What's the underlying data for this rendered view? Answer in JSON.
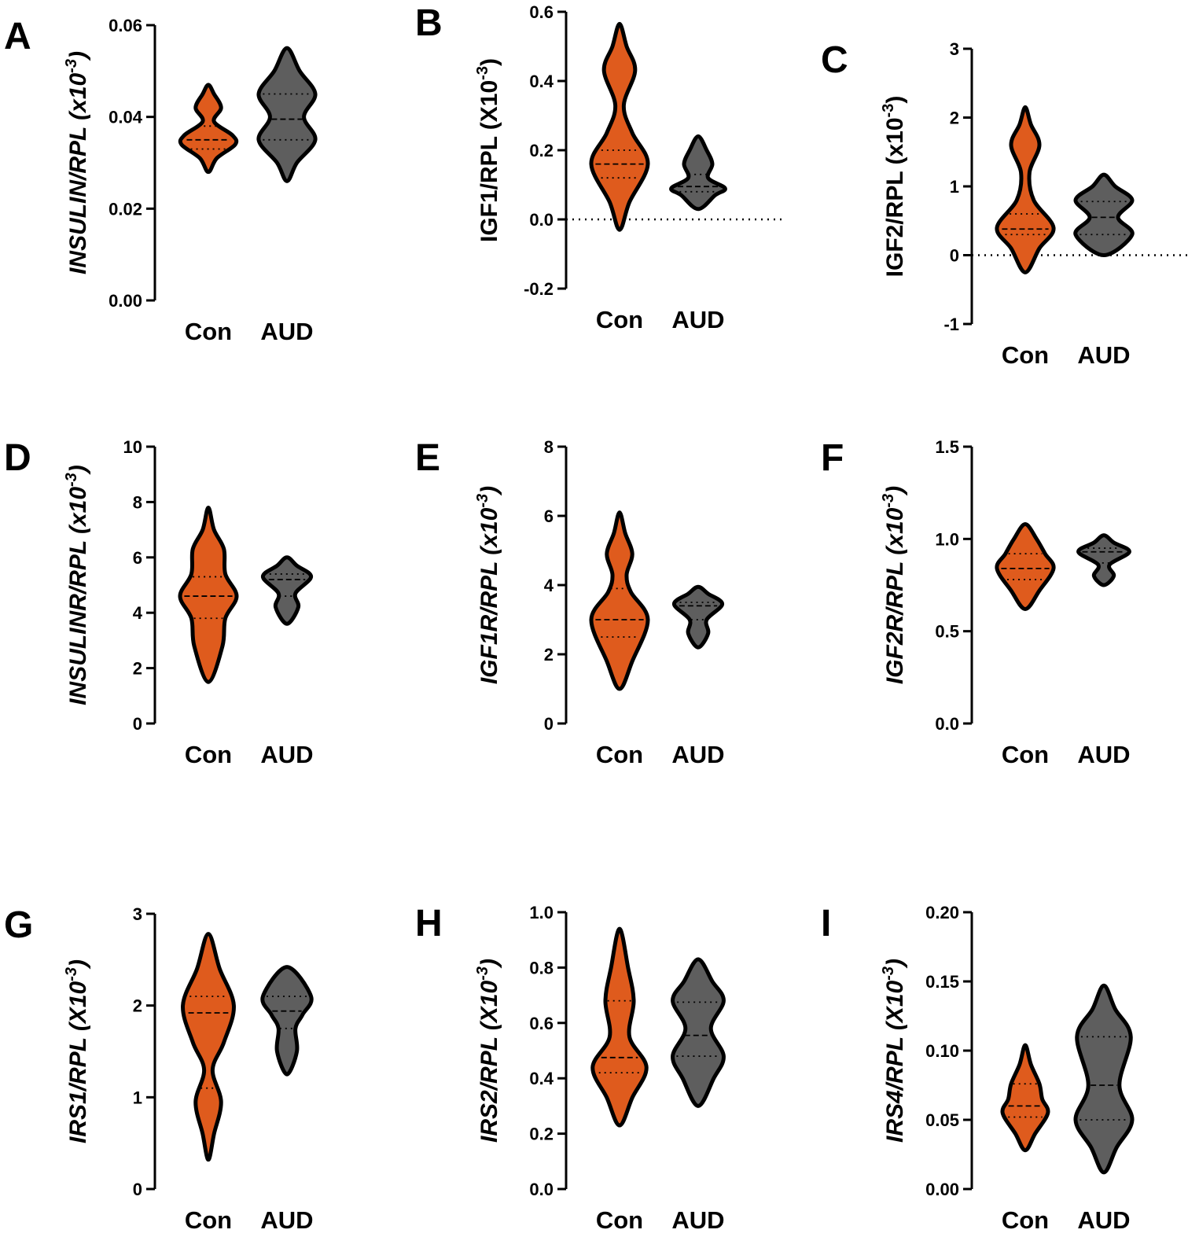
{
  "chart_data": [
    {
      "type": "violin",
      "panel": "A",
      "ylabel": "INSULIN/RPL (x10",
      "ylabel_exp": "-3",
      "ylabel_end": ")",
      "italic": true,
      "ylim": [
        0,
        0.06
      ],
      "yticks": [
        {
          "value": 0,
          "label": "0.00"
        },
        0.02,
        0.04,
        0.06
      ],
      "zero_line": false,
      "categories": [
        "Con",
        "AUD"
      ],
      "violins": [
        {
          "color": "#df5b1d",
          "q1": 0.033,
          "median": 0.035,
          "q3": 0.038,
          "density": {
            "y": [
              0.028,
              0.031,
              0.034,
              0.036,
              0.039,
              0.042,
              0.045,
              0.047
            ],
            "width": [
              0,
              0.3,
              0.95,
              0.85,
              0.2,
              0.45,
              0.2,
              0
            ]
          }
        },
        {
          "color": "#5e5e5e",
          "q1": 0.035,
          "median": 0.0395,
          "q3": 0.045,
          "density": {
            "y": [
              0.026,
              0.03,
              0.035,
              0.04,
              0.045,
              0.05,
              0.055
            ],
            "width": [
              0,
              0.35,
              1,
              0.6,
              1,
              0.45,
              0
            ]
          }
        }
      ]
    },
    {
      "type": "violin",
      "panel": "B",
      "ylabel": "IGF1/RPL (X10",
      "ylabel_exp": "-3",
      "ylabel_end": ")",
      "italic": false,
      "ylim": [
        -0.2,
        0.6
      ],
      "yticks": [
        -0.2,
        {
          "value": 0,
          "label": "0.0"
        },
        0.2,
        0.4,
        0.6
      ],
      "zero_line": true,
      "categories": [
        "Con",
        "AUD"
      ],
      "violins": [
        {
          "color": "#df5b1d",
          "q1": 0.12,
          "median": 0.16,
          "q3": 0.2,
          "density": {
            "y": [
              -0.03,
              0.05,
              0.16,
              0.25,
              0.33,
              0.43,
              0.5,
              0.565
            ],
            "width": [
              0,
              0.35,
              1,
              0.45,
              0.15,
              0.55,
              0.25,
              0
            ]
          }
        },
        {
          "color": "#5e5e5e",
          "q1": 0.08,
          "median": 0.095,
          "q3": 0.13,
          "density": {
            "y": [
              0.03,
              0.07,
              0.09,
              0.12,
              0.16,
              0.2,
              0.24
            ],
            "width": [
              0,
              0.6,
              0.95,
              0.35,
              0.5,
              0.3,
              0
            ]
          }
        }
      ]
    },
    {
      "type": "violin",
      "panel": "C",
      "ylabel": "IGF2/RPL (x10",
      "ylabel_exp": "-3",
      "ylabel_end": ")",
      "italic": false,
      "ylim": [
        -1,
        3
      ],
      "yticks": [
        -1,
        0,
        1,
        2,
        3
      ],
      "zero_line": true,
      "categories": [
        "Con",
        "AUD"
      ],
      "violins": [
        {
          "color": "#df5b1d",
          "q1": 0.3,
          "median": 0.38,
          "q3": 0.6,
          "density": {
            "y": [
              -0.25,
              0.1,
              0.4,
              0.8,
              1.2,
              1.6,
              1.9,
              2.15
            ],
            "width": [
              0,
              0.5,
              1,
              0.3,
              0.15,
              0.5,
              0.2,
              0
            ]
          }
        },
        {
          "color": "#5e5e5e",
          "q1": 0.3,
          "median": 0.55,
          "q3": 0.78,
          "density": {
            "y": [
              0,
              0.3,
              0.55,
              0.8,
              1.0,
              1.17
            ],
            "width": [
              0,
              1,
              0.5,
              1,
              0.4,
              0
            ]
          }
        }
      ]
    },
    {
      "type": "violin",
      "panel": "D",
      "ylabel": "INSULINR/RPL (x10",
      "ylabel_exp": "-3",
      "ylabel_end": ")",
      "italic": true,
      "ylim": [
        0,
        10
      ],
      "yticks": [
        0,
        2,
        4,
        6,
        8,
        10
      ],
      "zero_line": false,
      "categories": [
        "Con",
        "AUD"
      ],
      "violins": [
        {
          "color": "#df5b1d",
          "q1": 3.8,
          "median": 4.6,
          "q3": 5.3,
          "density": {
            "y": [
              1.5,
              2.8,
              3.8,
              4.6,
              5.4,
              6.3,
              7.0,
              7.8
            ],
            "width": [
              0,
              0.5,
              0.6,
              1,
              0.6,
              0.55,
              0.2,
              0
            ]
          }
        },
        {
          "color": "#5e5e5e",
          "q1": 4.6,
          "median": 5.2,
          "q3": 5.4,
          "density": {
            "y": [
              3.6,
              4.2,
              4.7,
              5.3,
              5.7,
              6.0
            ],
            "width": [
              0,
              0.4,
              0.3,
              0.85,
              0.35,
              0
            ]
          }
        }
      ]
    },
    {
      "type": "violin",
      "panel": "E",
      "ylabel": "IGF1R/RPL (x10",
      "ylabel_exp": "-3",
      "ylabel_end": ")",
      "italic": true,
      "ylim": [
        0,
        8
      ],
      "yticks": [
        0,
        2,
        4,
        6,
        8
      ],
      "zero_line": false,
      "categories": [
        "Con",
        "AUD"
      ],
      "violins": [
        {
          "color": "#df5b1d",
          "q1": 2.5,
          "median": 3.0,
          "q3": 3.9,
          "density": {
            "y": [
              1.0,
              1.8,
              3.0,
              3.8,
              4.3,
              4.9,
              5.5,
              6.1
            ],
            "width": [
              0,
              0.45,
              1,
              0.4,
              0.25,
              0.45,
              0.2,
              0
            ]
          }
        },
        {
          "color": "#5e5e5e",
          "q1": 3.0,
          "median": 3.4,
          "q3": 3.5,
          "density": {
            "y": [
              2.2,
              2.6,
              3.0,
              3.45,
              3.75,
              3.95
            ],
            "width": [
              0,
              0.35,
              0.3,
              0.85,
              0.35,
              0
            ]
          }
        }
      ]
    },
    {
      "type": "violin",
      "panel": "F",
      "ylabel": "IGF2R/RPL (x10",
      "ylabel_exp": "-3",
      "ylabel_end": ")",
      "italic": true,
      "ylim": [
        0,
        1.5
      ],
      "yticks": [
        {
          "value": 0,
          "label": "0.0"
        },
        0.5,
        {
          "value": 1,
          "label": "1.0"
        },
        1.5
      ],
      "zero_line": false,
      "categories": [
        "Con",
        "AUD"
      ],
      "violins": [
        {
          "color": "#df5b1d",
          "q1": 0.78,
          "median": 0.84,
          "q3": 0.92,
          "density": {
            "y": [
              0.62,
              0.72,
              0.84,
              0.92,
              1.0,
              1.08
            ],
            "width": [
              0,
              0.5,
              1,
              0.7,
              0.4,
              0
            ]
          }
        },
        {
          "color": "#5e5e5e",
          "q1": 0.87,
          "median": 0.93,
          "q3": 0.95,
          "density": {
            "y": [
              0.75,
              0.8,
              0.86,
              0.93,
              0.98,
              1.02
            ],
            "width": [
              0,
              0.35,
              0.2,
              0.9,
              0.35,
              0
            ]
          }
        }
      ]
    },
    {
      "type": "violin",
      "panel": "G",
      "ylabel": "IRS1/RPL (X10",
      "ylabel_exp": "-3",
      "ylabel_end": ")",
      "italic": true,
      "ylim": [
        0,
        3
      ],
      "yticks": [
        0,
        1,
        2,
        3
      ],
      "zero_line": false,
      "categories": [
        "Con",
        "AUD"
      ],
      "violins": [
        {
          "color": "#df5b1d",
          "q1": 1.1,
          "median": 1.92,
          "q3": 2.1,
          "density": {
            "y": [
              0.32,
              0.6,
              0.95,
              1.3,
              1.6,
              2.0,
              2.4,
              2.78
            ],
            "width": [
              0,
              0.2,
              0.45,
              0.15,
              0.55,
              0.9,
              0.4,
              0
            ]
          }
        },
        {
          "color": "#5e5e5e",
          "q1": 1.75,
          "median": 1.94,
          "q3": 2.1,
          "density": {
            "y": [
              1.25,
              1.5,
              1.75,
              1.9,
              2.1,
              2.42
            ],
            "width": [
              0,
              0.35,
              0.3,
              0.55,
              0.85,
              0
            ]
          }
        }
      ]
    },
    {
      "type": "violin",
      "panel": "H",
      "ylabel": "IRS2/RPL (X10",
      "ylabel_exp": "-3",
      "ylabel_end": ")",
      "italic": true,
      "ylim": [
        0,
        1
      ],
      "yticks": [
        {
          "value": 0,
          "label": "0.0"
        },
        0.2,
        0.4,
        0.6,
        0.8,
        {
          "value": 1,
          "label": "1.0"
        }
      ],
      "zero_line": false,
      "categories": [
        "Con",
        "AUD"
      ],
      "violins": [
        {
          "color": "#df5b1d",
          "q1": 0.42,
          "median": 0.475,
          "q3": 0.68,
          "density": {
            "y": [
              0.23,
              0.33,
              0.44,
              0.55,
              0.68,
              0.8,
              0.94
            ],
            "width": [
              0,
              0.45,
              0.95,
              0.35,
              0.5,
              0.3,
              0
            ]
          }
        },
        {
          "color": "#5e5e5e",
          "q1": 0.48,
          "median": 0.555,
          "q3": 0.675,
          "density": {
            "y": [
              0.3,
              0.4,
              0.48,
              0.58,
              0.68,
              0.75,
              0.83
            ],
            "width": [
              0,
              0.55,
              0.9,
              0.45,
              0.9,
              0.5,
              0
            ]
          }
        }
      ]
    },
    {
      "type": "violin",
      "panel": "I",
      "ylabel": "IRS4/RPL (X10",
      "ylabel_exp": "-3",
      "ylabel_end": ")",
      "italic": true,
      "ylim": [
        0,
        0.2
      ],
      "yticks": [
        {
          "value": 0,
          "label": "0.00"
        },
        0.05,
        {
          "value": 0.1,
          "label": "0.10"
        },
        0.15,
        {
          "value": 0.2,
          "label": "0.20"
        }
      ],
      "zero_line": false,
      "categories": [
        "Con",
        "AUD"
      ],
      "violins": [
        {
          "color": "#df5b1d",
          "q1": 0.052,
          "median": 0.06,
          "q3": 0.076,
          "density": {
            "y": [
              0.028,
              0.04,
              0.055,
              0.065,
              0.076,
              0.09,
              0.104
            ],
            "width": [
              0,
              0.35,
              0.8,
              0.6,
              0.5,
              0.2,
              0
            ]
          }
        },
        {
          "color": "#5e5e5e",
          "q1": 0.05,
          "median": 0.075,
          "q3": 0.11,
          "density": {
            "y": [
              0.012,
              0.03,
              0.05,
              0.075,
              0.11,
              0.13,
              0.147
            ],
            "width": [
              0,
              0.45,
              1,
              0.55,
              0.95,
              0.4,
              0
            ]
          }
        }
      ]
    }
  ]
}
